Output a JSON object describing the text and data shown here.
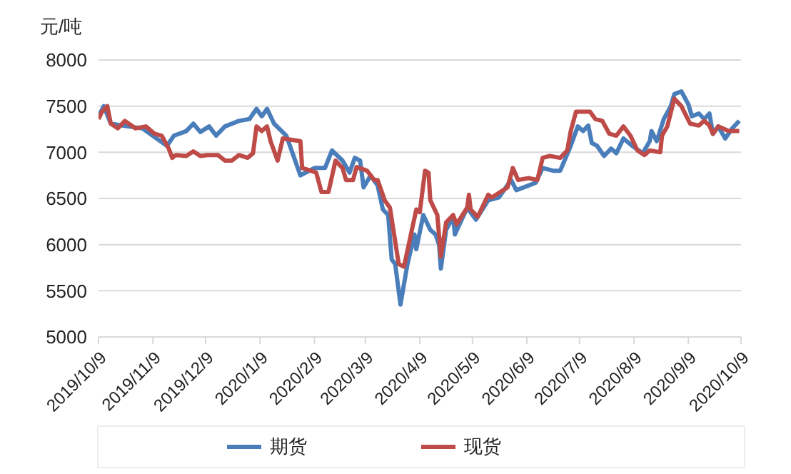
{
  "chart_data": {
    "type": "line",
    "ylabel": "元/吨",
    "xlim": [
      "2019-10-09",
      "2020-10-09"
    ],
    "xticks": [
      {
        "value": "2019-10-09",
        "label": "2019/10/9"
      },
      {
        "value": "2019-11-09",
        "label": "2019/11/9"
      },
      {
        "value": "2019-12-09",
        "label": "2019/12/9"
      },
      {
        "value": "2020-01-09",
        "label": "2020/1/9"
      },
      {
        "value": "2020-02-09",
        "label": "2020/2/9"
      },
      {
        "value": "2020-03-09",
        "label": "2020/3/9"
      },
      {
        "value": "2020-04-09",
        "label": "2020/4/9"
      },
      {
        "value": "2020-05-09",
        "label": "2020/5/9"
      },
      {
        "value": "2020-06-09",
        "label": "2020/6/9"
      },
      {
        "value": "2020-07-09",
        "label": "2020/7/9"
      },
      {
        "value": "2020-08-09",
        "label": "2020/8/9"
      },
      {
        "value": "2020-09-09",
        "label": "2020/9/9"
      },
      {
        "value": "2020-10-09",
        "label": "2020/10/9"
      }
    ],
    "ylim": [
      5000,
      8000
    ],
    "yticks": [
      5000,
      5500,
      6000,
      6500,
      7000,
      7500,
      8000
    ],
    "grid": "y",
    "legend": "bottom",
    "marker": "none",
    "line_style": "solid",
    "series": [
      {
        "name": "期货",
        "color": "#4a7ebb",
        "x": [
          "2019-10-09",
          "2019-10-12",
          "2019-10-16",
          "2019-10-26",
          "2019-11-03",
          "2019-11-11",
          "2019-11-17",
          "2019-11-21",
          "2019-11-28",
          "2019-12-02",
          "2019-12-06",
          "2019-12-11",
          "2019-12-15",
          "2019-12-20",
          "2019-12-28",
          "2020-01-03",
          "2020-01-07",
          "2020-01-10",
          "2020-01-13",
          "2020-01-17",
          "2020-01-24",
          "2020-02-01",
          "2020-02-09",
          "2020-02-15",
          "2020-02-19",
          "2020-02-25",
          "2020-02-29",
          "2020-03-03",
          "2020-03-06",
          "2020-03-08",
          "2020-03-12",
          "2020-03-16",
          "2020-03-19",
          "2020-03-22",
          "2020-03-24",
          "2020-03-26",
          "2020-03-29",
          "2020-04-02",
          "2020-04-06",
          "2020-04-07",
          "2020-04-11",
          "2020-04-15",
          "2020-04-18",
          "2020-04-20",
          "2020-04-21",
          "2020-04-24",
          "2020-04-28",
          "2020-04-29",
          "2020-05-06",
          "2020-05-11",
          "2020-05-18",
          "2020-05-24",
          "2020-05-31",
          "2020-06-03",
          "2020-06-10",
          "2020-06-14",
          "2020-06-18",
          "2020-06-24",
          "2020-06-28",
          "2020-07-04",
          "2020-07-08",
          "2020-07-11",
          "2020-07-14",
          "2020-07-16",
          "2020-07-19",
          "2020-07-23",
          "2020-07-27",
          "2020-07-30",
          "2020-08-03",
          "2020-08-08",
          "2020-08-14",
          "2020-08-18",
          "2020-08-19",
          "2020-08-22",
          "2020-08-26",
          "2020-08-30",
          "2020-09-01",
          "2020-09-05",
          "2020-09-09",
          "2020-09-11",
          "2020-09-15",
          "2020-09-18",
          "2020-09-21",
          "2020-09-23",
          "2020-09-26",
          "2020-09-30",
          "2020-10-04",
          "2020-10-08"
        ],
        "values": [
          7390,
          7500,
          7310,
          7280,
          7260,
          7150,
          7070,
          7180,
          7230,
          7310,
          7220,
          7280,
          7180,
          7280,
          7340,
          7360,
          7470,
          7390,
          7470,
          7310,
          7180,
          6750,
          6830,
          6830,
          7020,
          6910,
          6780,
          6940,
          6910,
          6620,
          6750,
          6640,
          6380,
          6320,
          5840,
          5790,
          5350,
          5790,
          6110,
          5950,
          6320,
          6160,
          6110,
          6000,
          5740,
          6160,
          6300,
          6110,
          6400,
          6270,
          6480,
          6510,
          6700,
          6590,
          6640,
          6670,
          6830,
          6800,
          6800,
          7070,
          7280,
          7230,
          7290,
          7100,
          7070,
          6960,
          7040,
          6990,
          7150,
          7070,
          6990,
          7120,
          7230,
          7120,
          7360,
          7500,
          7630,
          7660,
          7520,
          7390,
          7420,
          7360,
          7420,
          7200,
          7280,
          7150,
          7260,
          7340
        ]
      },
      {
        "name": "现货",
        "color": "#be4b48",
        "x": [
          "2019-10-09",
          "2019-10-11",
          "2019-10-14",
          "2019-10-16",
          "2019-10-20",
          "2019-10-24",
          "2019-10-30",
          "2019-11-05",
          "2019-11-10",
          "2019-11-14",
          "2019-11-18",
          "2019-11-20",
          "2019-11-22",
          "2019-11-28",
          "2019-12-02",
          "2019-12-06",
          "2019-12-10",
          "2019-12-16",
          "2019-12-20",
          "2019-12-24",
          "2019-12-28",
          "2020-01-02",
          "2020-01-05",
          "2020-01-07",
          "2020-01-10",
          "2020-01-13",
          "2020-01-15",
          "2020-01-19",
          "2020-01-22",
          "2020-02-01",
          "2020-02-02",
          "2020-02-07",
          "2020-02-10",
          "2020-02-13",
          "2020-02-17",
          "2020-02-21",
          "2020-02-25",
          "2020-02-27",
          "2020-03-02",
          "2020-03-04",
          "2020-03-10",
          "2020-03-14",
          "2020-03-16",
          "2020-03-20",
          "2020-03-23",
          "2020-03-28",
          "2020-03-31",
          "2020-04-07",
          "2020-04-09",
          "2020-04-12",
          "2020-04-14",
          "2020-04-15",
          "2020-04-19",
          "2020-04-21",
          "2020-04-24",
          "2020-04-28",
          "2020-04-30",
          "2020-05-06",
          "2020-05-07",
          "2020-05-08",
          "2020-05-12",
          "2020-05-18",
          "2020-05-20",
          "2020-05-29",
          "2020-06-01",
          "2020-06-04",
          "2020-06-10",
          "2020-06-15",
          "2020-06-18",
          "2020-06-22",
          "2020-06-28",
          "2020-07-02",
          "2020-07-04",
          "2020-07-07",
          "2020-07-15",
          "2020-07-18",
          "2020-07-22",
          "2020-07-26",
          "2020-07-30",
          "2020-08-03",
          "2020-08-07",
          "2020-08-11",
          "2020-08-15",
          "2020-08-18",
          "2020-08-24",
          "2020-08-25",
          "2020-08-28",
          "2020-09-01",
          "2020-09-05",
          "2020-09-10",
          "2020-09-15",
          "2020-09-18",
          "2020-09-21",
          "2020-09-23",
          "2020-09-26",
          "2020-10-02",
          "2020-10-08"
        ],
        "values": [
          7360,
          7440,
          7500,
          7310,
          7260,
          7340,
          7260,
          7280,
          7200,
          7180,
          7040,
          6940,
          6970,
          6960,
          7010,
          6960,
          6970,
          6970,
          6910,
          6910,
          6970,
          6940,
          6990,
          7280,
          7230,
          7280,
          7120,
          6910,
          7150,
          7120,
          6830,
          6800,
          6780,
          6570,
          6570,
          6910,
          6830,
          6700,
          6700,
          6840,
          6800,
          6700,
          6700,
          6480,
          6400,
          5790,
          5760,
          6380,
          6350,
          6800,
          6780,
          6480,
          6320,
          5870,
          6240,
          6320,
          6220,
          6400,
          6540,
          6380,
          6300,
          6540,
          6510,
          6620,
          6830,
          6700,
          6720,
          6700,
          6940,
          6960,
          6940,
          7020,
          7230,
          7440,
          7440,
          7360,
          7340,
          7200,
          7180,
          7280,
          7180,
          7020,
          6970,
          7020,
          7000,
          7180,
          7280,
          7580,
          7500,
          7310,
          7290,
          7340,
          7290,
          7200,
          7280,
          7230,
          7230
        ]
      }
    ]
  }
}
